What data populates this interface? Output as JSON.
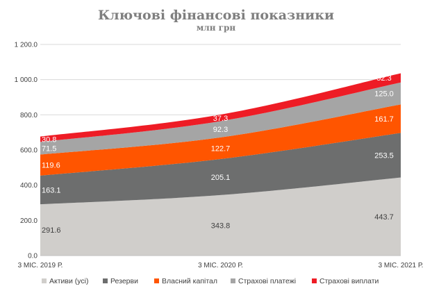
{
  "chart_data": {
    "type": "area",
    "stacked": true,
    "title": "Ключові фінансові показники",
    "subtitle": "млн грн",
    "categories": [
      "3 МІС. 2019 Р.",
      "3 МІС. 2020 Р.",
      "3 МІС. 2021 Р."
    ],
    "ylim": [
      0,
      1200
    ],
    "yticks": [
      "0.0",
      "200.0",
      "400.0",
      "600.0",
      "800.0",
      "1 000.0",
      "1 200.0"
    ],
    "grid": true,
    "legend_position": "bottom",
    "series": [
      {
        "name": "Активи (усі)",
        "values": [
          291.6,
          343.8,
          443.7
        ],
        "labels": [
          "291.6",
          "343.8",
          "443.7"
        ],
        "color": "#d0cecb",
        "label_color": "#404040"
      },
      {
        "name": "Резерви",
        "values": [
          163.1,
          205.1,
          253.5
        ],
        "labels": [
          "163.1",
          "205.1",
          "253.5"
        ],
        "color": "#6d6e6e",
        "label_color": "#ffffff"
      },
      {
        "name": "Власний капітал",
        "values": [
          119.6,
          122.7,
          161.7
        ],
        "labels": [
          "119.6",
          "122.7",
          "161.7"
        ],
        "color": "#ff5500",
        "label_color": "#ffffff"
      },
      {
        "name": "Страхові платежі",
        "values": [
          71.5,
          92.3,
          125.0
        ],
        "labels": [
          "71.5",
          "92.3",
          "125.0"
        ],
        "color": "#a5a5a5",
        "label_color": "#ffffff"
      },
      {
        "name": "Страхові виплати",
        "values": [
          30.8,
          37.3,
          52.3
        ],
        "labels": [
          "30.8",
          "37.3",
          "52.3"
        ],
        "color": "#ee1c25",
        "label_color": "#ffffff"
      }
    ]
  }
}
